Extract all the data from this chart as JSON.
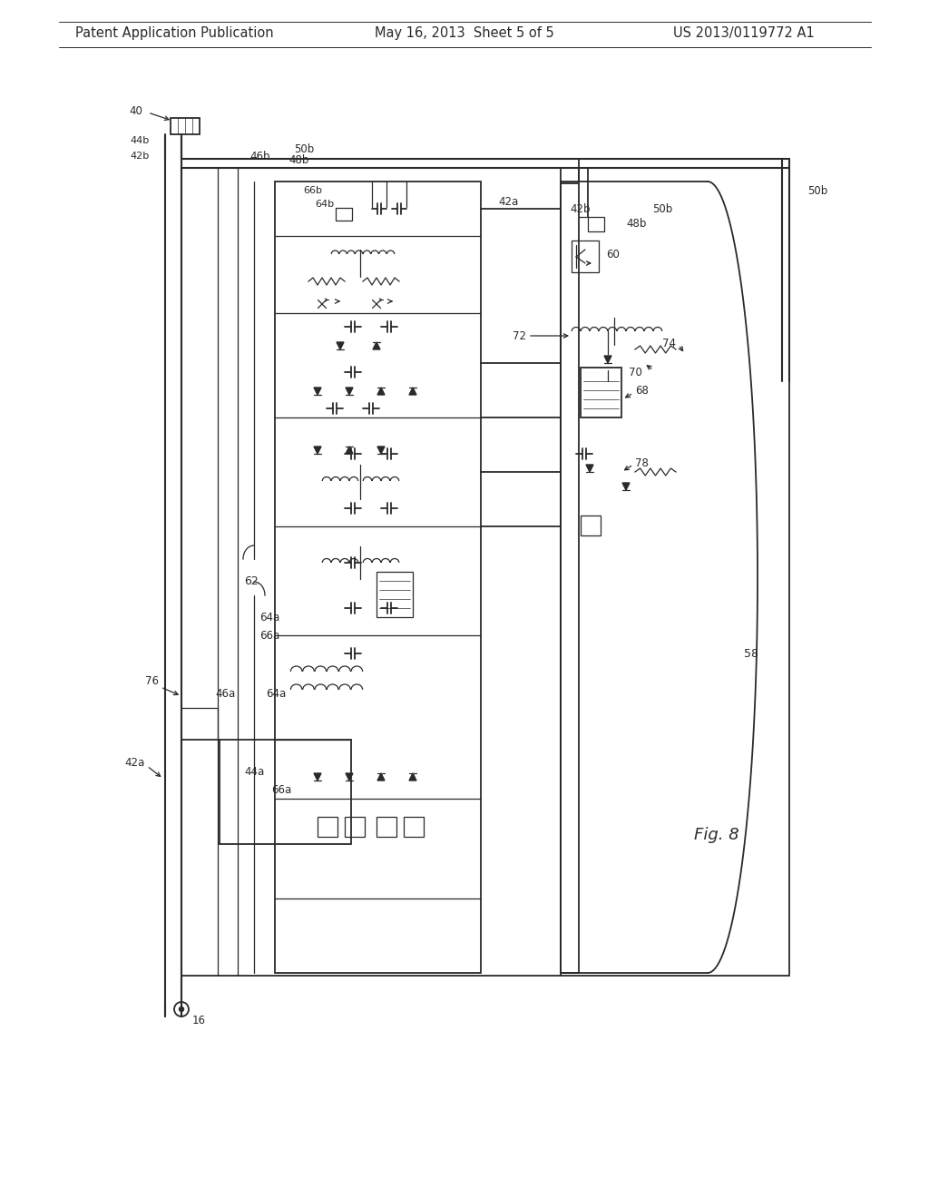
{
  "bg_color": "#ffffff",
  "line_color": "#2a2a2a",
  "header_left": "Patent Application Publication",
  "header_mid": "May 16, 2013  Sheet 5 of 5",
  "header_right": "US 2013/0119772 A1",
  "fig_label": "Fig. 8",
  "header_fontsize": 10.5,
  "label_fontsize": 8.5,
  "fig_fontsize": 13
}
